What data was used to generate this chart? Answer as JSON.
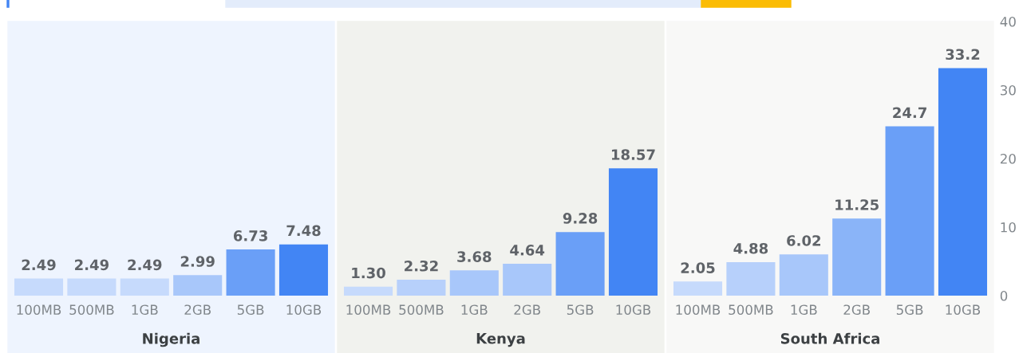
{
  "chart_data": [
    {
      "type": "bar",
      "xlabel": "Nigeria",
      "categories": [
        "100MB",
        "500MB",
        "1GB",
        "2GB",
        "5GB",
        "10GB"
      ],
      "values": [
        2.49,
        2.49,
        2.49,
        2.99,
        6.73,
        7.48
      ],
      "value_labels": [
        "2.49",
        "2.49",
        "2.49",
        "2.99",
        "6.73",
        "7.48"
      ],
      "colors": [
        "#c6dafc",
        "#c6dafc",
        "#c6dafc",
        "#a8c7fa",
        "#6a9ff7",
        "#4285f4"
      ],
      "ylim": [
        0,
        40
      ],
      "yticks": [
        0,
        10,
        20,
        30,
        40
      ],
      "tick_labels": "x",
      "grid": false
    },
    {
      "type": "bar",
      "xlabel": "Kenya",
      "categories": [
        "100MB",
        "500MB",
        "1GB",
        "2GB",
        "5GB",
        "10GB"
      ],
      "values": [
        1.3,
        2.32,
        3.68,
        4.64,
        9.28,
        18.57
      ],
      "value_labels": [
        "1.30",
        "2.32",
        "3.68",
        "4.64",
        "9.28",
        "18.57"
      ],
      "colors": [
        "#c6dafc",
        "#b7d0fb",
        "#a8c7fa",
        "#a8c7fa",
        "#6a9ff7",
        "#4285f4"
      ],
      "ylim": [
        0,
        40
      ],
      "yticks": [
        0,
        10,
        20,
        30,
        40
      ],
      "tick_labels": "x",
      "grid": false
    },
    {
      "type": "bar",
      "xlabel": "South Africa",
      "categories": [
        "100MB",
        "500MB",
        "1GB",
        "2GB",
        "5GB",
        "10GB"
      ],
      "values": [
        2.05,
        4.88,
        6.02,
        11.25,
        24.7,
        33.2
      ],
      "value_labels": [
        "2.05",
        "4.88",
        "6.02",
        "11.25",
        "24.7",
        "33.2"
      ],
      "colors": [
        "#c6dafc",
        "#b7d0fb",
        "#a8c7fa",
        "#8ab4f8",
        "#6a9ff7",
        "#4285f4"
      ],
      "ylim": [
        0,
        40
      ],
      "yticks": [
        0,
        10,
        20,
        30,
        40
      ],
      "grid": false
    }
  ]
}
